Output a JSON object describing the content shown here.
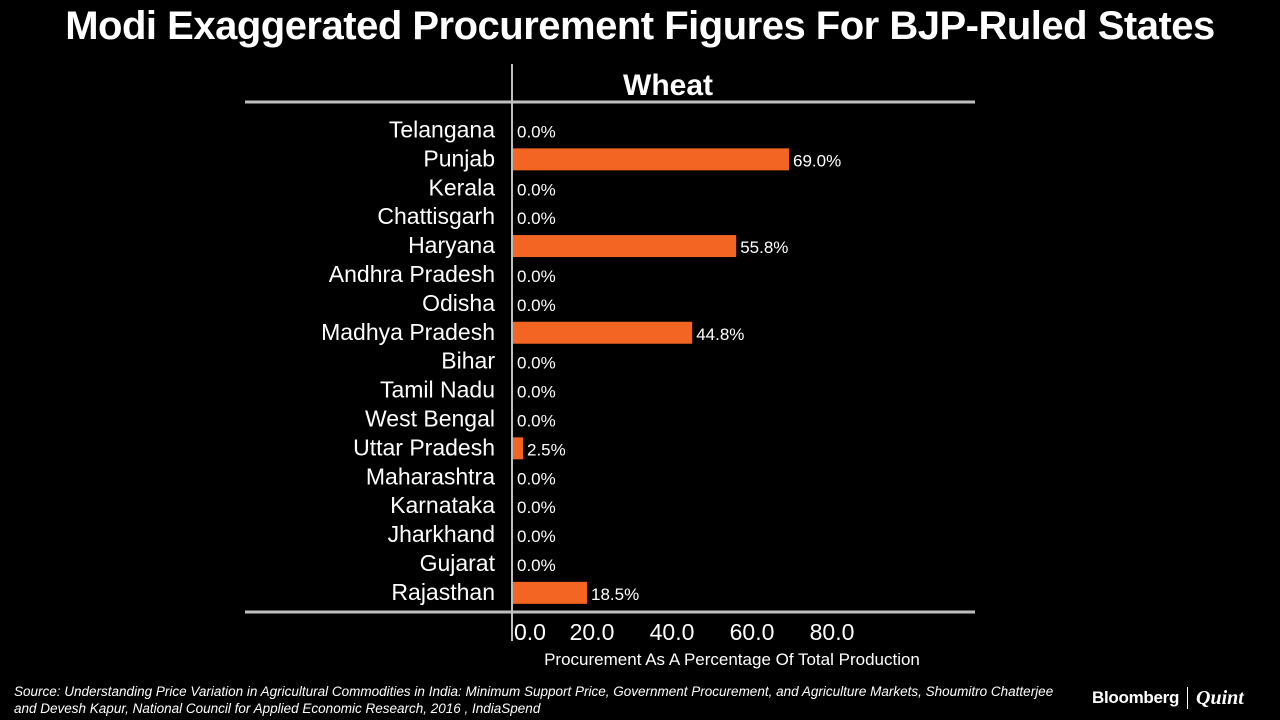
{
  "headline": "Modi Exaggerated Procurement Figures For BJP-Ruled States",
  "source": "Source: Understanding Price Variation in Agricultural Commodities in India: Minimum Support Price, Government Procurement, and Agriculture Markets, Shoumitro Chatterjee and Devesh Kapur, National Council for Applied Economic Research, 2016 , IndiaSpend",
  "logo": {
    "brand": "Bloomberg",
    "partner": "Quint"
  },
  "colors": {
    "background": "#000000",
    "bar": "#f26522",
    "text": "#ffffff",
    "axis": "#bfbfbf"
  },
  "chart_data": {
    "type": "bar",
    "orientation": "horizontal",
    "title": "Wheat",
    "xlabel": "Procurement As A Percentage Of Total Production",
    "ylabel": "",
    "categories": [
      "Telangana",
      "Punjab",
      "Kerala",
      "Chattisgarh",
      "Haryana",
      "Andhra Pradesh",
      "Odisha",
      "Madhya Pradesh",
      "Bihar",
      "Tamil Nadu",
      "West Bengal",
      "Uttar Pradesh",
      "Maharashtra",
      "Karnataka",
      "Jharkhand",
      "Gujarat",
      "Rajasthan"
    ],
    "values": [
      0.0,
      69.0,
      0.0,
      0.0,
      55.8,
      0.0,
      0.0,
      44.8,
      0.0,
      0.0,
      0.0,
      2.5,
      0.0,
      0.0,
      0.0,
      0.0,
      18.5
    ],
    "value_labels": [
      "0.0%",
      "69.0%",
      "0.0%",
      "0.0%",
      "55.8%",
      "0.0%",
      "0.0%",
      "44.8%",
      "0.0%",
      "0.0%",
      "0.0%",
      "2.5%",
      "0.0%",
      "0.0%",
      "0.0%",
      "0.0%",
      "18.5%"
    ],
    "xticks": [
      "0.0",
      "20.0",
      "40.0",
      "60.0",
      "80.0"
    ],
    "xtick_values": [
      0,
      20,
      40,
      60,
      80
    ],
    "xlim": [
      0,
      95
    ],
    "grid": false,
    "legend": "none"
  }
}
